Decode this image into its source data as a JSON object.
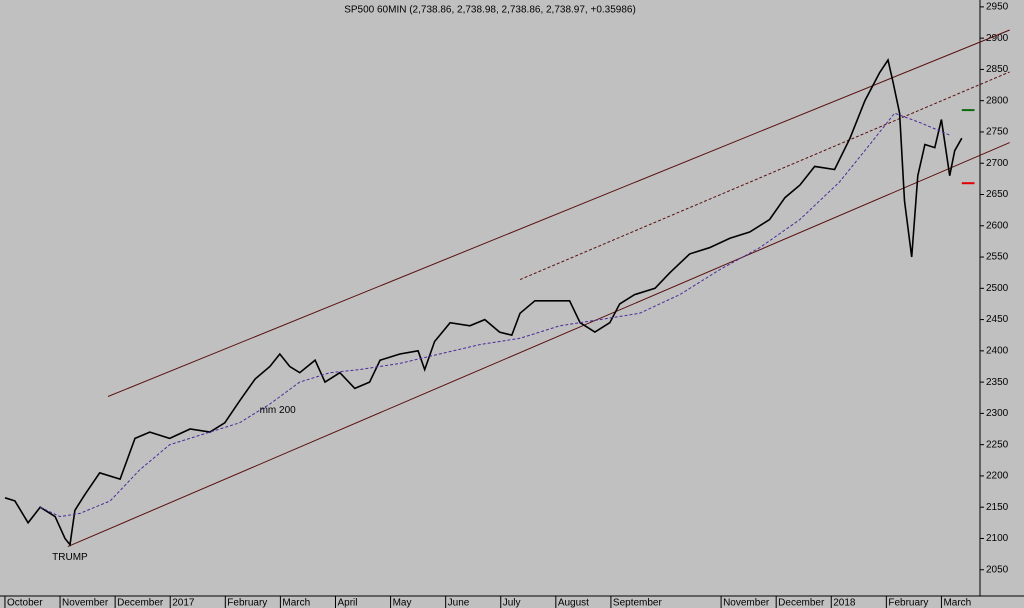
{
  "chart_data": {
    "type": "line",
    "title": "SP500 60MIN (2,738.86, 2,738.98, 2,738.86, 2,738.97, +0.35986)",
    "xlim": [
      -0.09,
      17.7
    ],
    "xticks": [
      {
        "value": 0,
        "label": "October"
      },
      {
        "value": 1,
        "label": "November"
      },
      {
        "value": 2,
        "label": "December"
      },
      {
        "value": 3,
        "label": "2017"
      },
      {
        "value": 4,
        "label": "February"
      },
      {
        "value": 5,
        "label": "March"
      },
      {
        "value": 6,
        "label": "April"
      },
      {
        "value": 7,
        "label": "May"
      },
      {
        "value": 8,
        "label": "June"
      },
      {
        "value": 9,
        "label": "July"
      },
      {
        "value": 10,
        "label": "August"
      },
      {
        "value": 11,
        "label": "September"
      },
      {
        "value": 13,
        "label": "November"
      },
      {
        "value": 14,
        "label": "December"
      },
      {
        "value": 15,
        "label": "2018"
      },
      {
        "value": 16,
        "label": "February"
      },
      {
        "value": 17,
        "label": "March"
      }
    ],
    "ylim": [
      2008,
      2961
    ],
    "yticks": [
      2050,
      2100,
      2150,
      2200,
      2250,
      2300,
      2350,
      2400,
      2450,
      2500,
      2550,
      2600,
      2650,
      2700,
      2750,
      2800,
      2850,
      2900,
      2950
    ],
    "series": [
      {
        "color": "#000000",
        "x": [
          0,
          0.18,
          0.42,
          0.64,
          0.91,
          1.09,
          1.18,
          1.27,
          1.45,
          1.72,
          2.09,
          2.36,
          2.63,
          2.99,
          3.36,
          3.72,
          3.99,
          4.26,
          4.54,
          4.81,
          4.99,
          5.17,
          5.35,
          5.63,
          5.81,
          6.08,
          6.35,
          6.62,
          6.81,
          7.17,
          7.5,
          7.62,
          7.8,
          8.08,
          8.44,
          8.71,
          8.98,
          9.2,
          9.35,
          9.62,
          9.98,
          10.25,
          10.44,
          10.71,
          10.98,
          11.16,
          11.43,
          11.8,
          12.07,
          12.43,
          12.79,
          13.16,
          13.52,
          13.88,
          14.16,
          14.43,
          14.7,
          15.06,
          15.34,
          15.61,
          15.88,
          16.03,
          16.12,
          16.24,
          16.33,
          16.46,
          16.57,
          16.7,
          16.88,
          17.0,
          17.15,
          17.24,
          17.37
        ],
        "values": [
          2165,
          2160,
          2125,
          2150,
          2135,
          2100,
          2090,
          2145,
          2170,
          2205,
          2195,
          2260,
          2270,
          2260,
          2275,
          2270,
          2285,
          2320,
          2355,
          2375,
          2395,
          2375,
          2365,
          2385,
          2350,
          2365,
          2340,
          2350,
          2385,
          2395,
          2400,
          2370,
          2415,
          2445,
          2440,
          2450,
          2430,
          2425,
          2460,
          2480,
          2480,
          2480,
          2445,
          2430,
          2445,
          2475,
          2490,
          2500,
          2525,
          2555,
          2565,
          2580,
          2590,
          2610,
          2645,
          2665,
          2695,
          2690,
          2740,
          2800,
          2845,
          2865,
          2830,
          2780,
          2640,
          2550,
          2680,
          2730,
          2725,
          2770,
          2680,
          2720,
          2740
        ]
      },
      {
        "name": "mm 200",
        "color": "#4b2a9a",
        "dash": true,
        "x": [
          0.64,
          1.0,
          1.36,
          1.91,
          2.45,
          2.99,
          3.72,
          4.26,
          4.81,
          5.35,
          5.9,
          6.44,
          7.17,
          7.89,
          8.62,
          9.35,
          10.07,
          10.8,
          11.52,
          12.25,
          12.98,
          13.7,
          14.43,
          15.15,
          15.7,
          16.15,
          16.61,
          17.15
        ],
        "values": [
          2150,
          2135,
          2140,
          2160,
          2210,
          2250,
          2270,
          2285,
          2315,
          2350,
          2365,
          2370,
          2380,
          2395,
          2410,
          2420,
          2440,
          2450,
          2460,
          2490,
          2530,
          2565,
          2610,
          2670,
          2730,
          2780,
          2765,
          2745
        ]
      }
    ],
    "trendlines": [
      {
        "color": "#5a1010",
        "x": [
          1.87,
          18.24
        ],
        "values": [
          2327,
          2913
        ]
      },
      {
        "color": "#5a1010",
        "x": [
          1.14,
          18.24
        ],
        "values": [
          2087,
          2733
        ]
      },
      {
        "color": "#5a1010",
        "dash": true,
        "x": [
          9.35,
          18.24
        ],
        "values": [
          2514,
          2846
        ]
      }
    ],
    "levels": [
      {
        "color": "#0a6a0a",
        "x": [
          17.37,
          17.6
        ],
        "values": [
          2785,
          2785
        ]
      },
      {
        "color": "#e00000",
        "x": [
          17.37,
          17.6
        ],
        "values": [
          2668,
          2668
        ]
      }
    ],
    "annotations": [
      {
        "text": "TRUMP",
        "x": 1.18,
        "y": 2070
      },
      {
        "text": "mm 200",
        "x": 4.95,
        "y": 2305
      }
    ]
  }
}
